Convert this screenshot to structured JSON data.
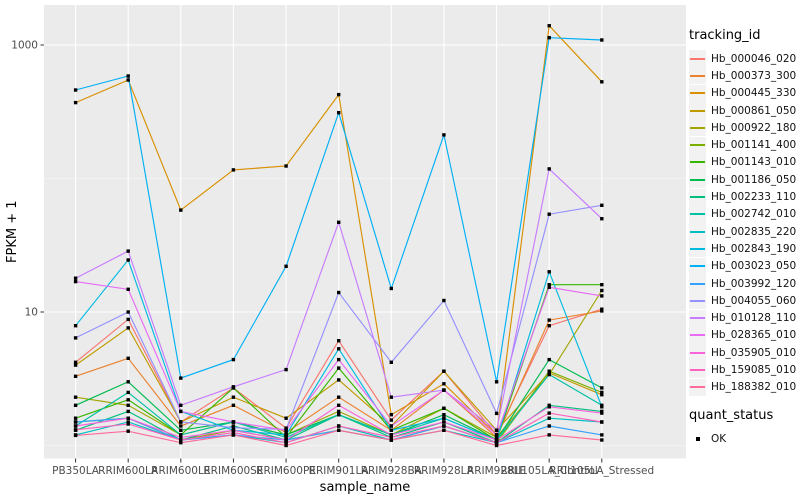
{
  "chart_data": {
    "type": "line",
    "title": "",
    "xlabel": "sample_name",
    "ylabel": "FPKM + 1",
    "yscale": "log10",
    "ylim": [
      1,
      1500
    ],
    "yticks": [
      {
        "value": 1000,
        "label": "1000"
      },
      {
        "value": 10,
        "label": "10"
      }
    ],
    "minor_grid_values": [
      100,
      1
    ],
    "grid": true,
    "panel_background": "#EBEBEB",
    "grid_color_major": "#FFFFFF",
    "grid_color_minor": "#F5F5F5",
    "tick_color": "#333333",
    "tick_label_color": "#4D4D4D",
    "axis_title_color": "#000000",
    "marker": {
      "shape": "square",
      "color": "#000000",
      "size": 3.4
    },
    "x_categories": [
      "PB350LA",
      "RRIM600LA",
      "RRIM600LE",
      "RRIM600SE",
      "RRIM600PE",
      "RRIM901LA",
      "RRIM928BA",
      "RRIM928LA",
      "RRIM928LE",
      "RRII105LA_Control",
      "RRII105LA_Stressed"
    ],
    "legend": {
      "title": "tracking_id",
      "position": "right",
      "quant_title": "quant_status",
      "quant_items": [
        {
          "label": "OK",
          "marker": "square",
          "color": "#000000"
        }
      ]
    },
    "series": [
      {
        "name": "Hb_000046_020",
        "color": "#F8766D",
        "values": [
          4.2,
          8.8,
          1.5,
          2.7,
          1.35,
          6.1,
          1.55,
          3.6,
          1.2,
          7.9,
          10.5
        ]
      },
      {
        "name": "Hb_000373_300",
        "color": "#EA8331",
        "values": [
          3.3,
          4.5,
          1.4,
          2.0,
          1.25,
          2.3,
          1.3,
          2.6,
          1.15,
          8.7,
          10.2
        ]
      },
      {
        "name": "Hb_000445_330",
        "color": "#D89000",
        "values": [
          370,
          547,
          58,
          116,
          124,
          425,
          1.7,
          2.9,
          1.2,
          1395,
          530
        ]
      },
      {
        "name": "Hb_000861_050",
        "color": "#C09B00",
        "values": [
          4.0,
          7.6,
          1.5,
          2.3,
          1.6,
          3.1,
          1.4,
          3.6,
          1.3,
          3.5,
          2.4
        ]
      },
      {
        "name": "Hb_000922_180",
        "color": "#A3A500",
        "values": [
          2.3,
          2.0,
          1.2,
          1.5,
          1.2,
          1.8,
          1.2,
          1.9,
          1.15,
          3.4,
          14.5
        ]
      },
      {
        "name": "Hb_001141_400",
        "color": "#7CAE00",
        "values": [
          1.5,
          1.6,
          1.1,
          1.3,
          1.1,
          1.3,
          1.1,
          1.4,
          1.05,
          3.6,
          2.5
        ]
      },
      {
        "name": "Hb_001143_010",
        "color": "#39B600",
        "values": [
          1.6,
          2.2,
          1.2,
          2.7,
          1.15,
          3.8,
          1.3,
          1.9,
          1.1,
          16,
          16
        ]
      },
      {
        "name": "Hb_001186_050",
        "color": "#00BB4E",
        "values": [
          2.0,
          3.0,
          1.3,
          1.5,
          1.2,
          1.7,
          1.2,
          1.7,
          1.1,
          4.4,
          2.7
        ]
      },
      {
        "name": "Hb_002233_110",
        "color": "#00BF7D",
        "values": [
          1.3,
          1.8,
          1.1,
          1.4,
          1.1,
          1.7,
          1.15,
          1.5,
          1.05,
          2.0,
          1.8
        ]
      },
      {
        "name": "Hb_002742_010",
        "color": "#00C1A3",
        "values": [
          1.4,
          2.5,
          1.2,
          1.5,
          1.15,
          1.7,
          1.2,
          1.6,
          1.1,
          3.4,
          2.0
        ]
      },
      {
        "name": "Hb_002835_220",
        "color": "#00BFC4",
        "values": [
          1.2,
          1.5,
          1.1,
          1.2,
          1.05,
          1.4,
          1.1,
          1.3,
          1.05,
          1.6,
          1.5
        ]
      },
      {
        "name": "Hb_002843_190",
        "color": "#00BAE0",
        "values": [
          7.9,
          24.5,
          1.8,
          1.3,
          1.2,
          5.3,
          1.3,
          1.6,
          1.1,
          20,
          1.95
        ]
      },
      {
        "name": "Hb_003023_050",
        "color": "#00B0F6",
        "values": [
          460,
          586,
          3.2,
          4.4,
          22,
          311,
          15,
          212,
          3.0,
          1134,
          1090
        ]
      },
      {
        "name": "Hb_003992_120",
        "color": "#35A2FF",
        "values": [
          1.5,
          1.6,
          1.1,
          1.2,
          1.1,
          1.3,
          1.1,
          1.4,
          1.05,
          1.4,
          1.2
        ]
      },
      {
        "name": "Hb_004055_060",
        "color": "#9590FF",
        "values": [
          6.4,
          10.0,
          1.5,
          1.36,
          1.32,
          14,
          4.2,
          12.2,
          1.74,
          54,
          63
        ]
      },
      {
        "name": "Hb_010128_110",
        "color": "#C77CFF",
        "values": [
          17.9,
          28.6,
          2.0,
          2.75,
          3.7,
          47,
          2.3,
          2.6,
          1.3,
          118,
          50
        ]
      },
      {
        "name": "Hb_028365_010",
        "color": "#E76BF3",
        "values": [
          16.9,
          14.8,
          1.8,
          1.5,
          1.3,
          4.4,
          1.4,
          2.6,
          1.2,
          15.3,
          13.2
        ]
      },
      {
        "name": "Hb_035905_010",
        "color": "#FA62DB",
        "values": [
          1.4,
          1.6,
          1.15,
          1.3,
          1.1,
          2.0,
          1.2,
          1.5,
          1.1,
          1.95,
          1.75
        ]
      },
      {
        "name": "Hb_159085_010",
        "color": "#FF62BC",
        "values": [
          1.31,
          1.45,
          1.1,
          1.25,
          1.05,
          1.4,
          1.15,
          1.4,
          1.05,
          1.75,
          1.5
        ]
      },
      {
        "name": "Hb_188382_010",
        "color": "#FF6A98",
        "values": [
          1.19,
          1.28,
          1.05,
          1.2,
          1.0,
          1.3,
          1.1,
          1.3,
          1.0,
          1.2,
          1.1
        ]
      }
    ]
  }
}
